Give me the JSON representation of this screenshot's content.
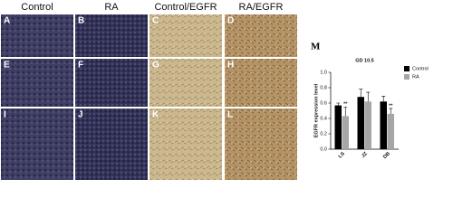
{
  "panels": {
    "headers": [
      "Control",
      "RA",
      "Control/EGFR",
      "RA/EGFR"
    ],
    "labels": [
      "A",
      "B",
      "C",
      "D",
      "E",
      "F",
      "G",
      "H",
      "I",
      "J",
      "K",
      "L"
    ]
  },
  "chart_data": {
    "type": "bar",
    "panel_label": "M",
    "title": "GD 10.5",
    "y_label": "EGFR expression level",
    "categories": [
      "LS",
      "JZ",
      "DB"
    ],
    "series": [
      {
        "name": "Control",
        "color": "#000000",
        "values": [
          0.57,
          0.68,
          0.62
        ],
        "errors": [
          0.03,
          0.1,
          0.07
        ],
        "significance": [
          null,
          null,
          null
        ]
      },
      {
        "name": "RA",
        "color": "#a6a6a6",
        "values": [
          0.43,
          0.62,
          0.46
        ],
        "errors": [
          0.12,
          0.12,
          0.07
        ],
        "significance": [
          "**",
          null,
          "**"
        ]
      }
    ],
    "ylim": [
      0,
      1.0
    ],
    "yticks": [
      {
        "value": 0,
        "label": "0.0"
      },
      {
        "value": 0.2,
        "label": "0.2"
      },
      {
        "value": 0.4,
        "label": "0.4"
      },
      {
        "value": 0.6,
        "label": "0.6"
      },
      {
        "value": 0.8,
        "label": "0.8"
      },
      {
        "value": 1.0,
        "label": "1.0"
      }
    ],
    "legend": "upper right"
  }
}
